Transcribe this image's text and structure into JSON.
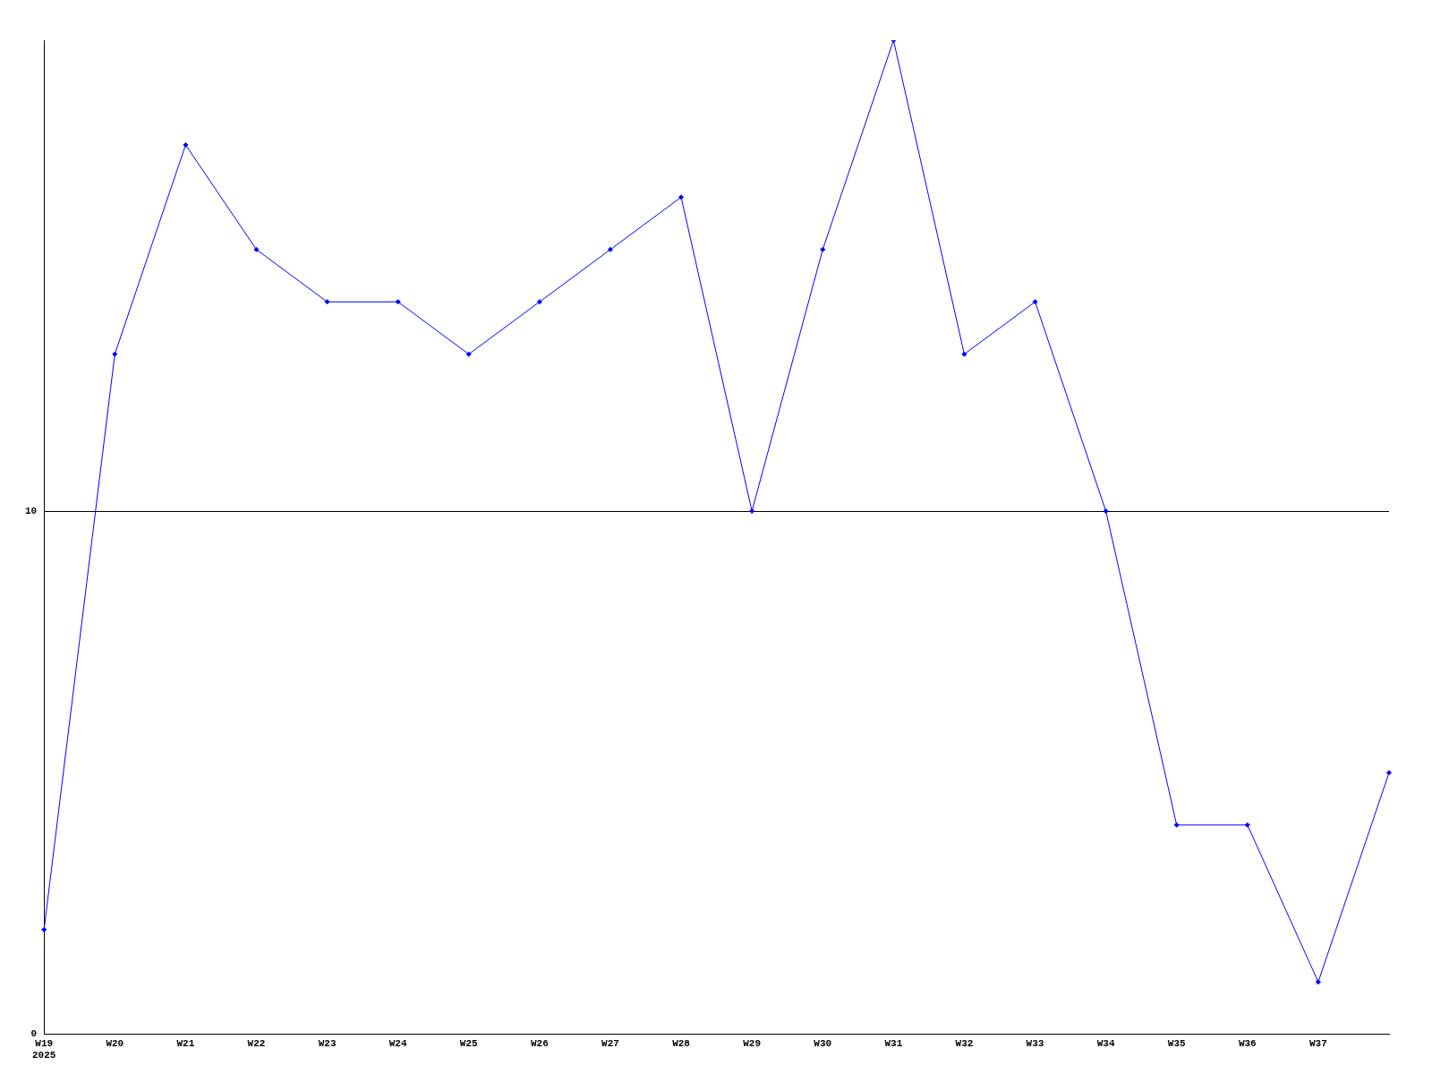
{
  "chart_data": {
    "type": "line",
    "categories": [
      "W19\n2025",
      "W20",
      "W21",
      "W22",
      "W23",
      "W24",
      "W25",
      "W26",
      "W27",
      "W28",
      "W29",
      "W30",
      "W31",
      "W32",
      "W33",
      "W34",
      "W35",
      "W36",
      "W37",
      null
    ],
    "series": [
      {
        "color": "#0000ff",
        "values": [
          2,
          13,
          17,
          15,
          14,
          14,
          13,
          14,
          15,
          16,
          10,
          15,
          19,
          13,
          14,
          10,
          4,
          4,
          1,
          5
        ]
      }
    ],
    "ylim": [
      0,
      19
    ],
    "yticks": [
      0,
      10
    ],
    "grid": "y",
    "legend": false,
    "marker": "diamond",
    "line_style": "solid"
  }
}
